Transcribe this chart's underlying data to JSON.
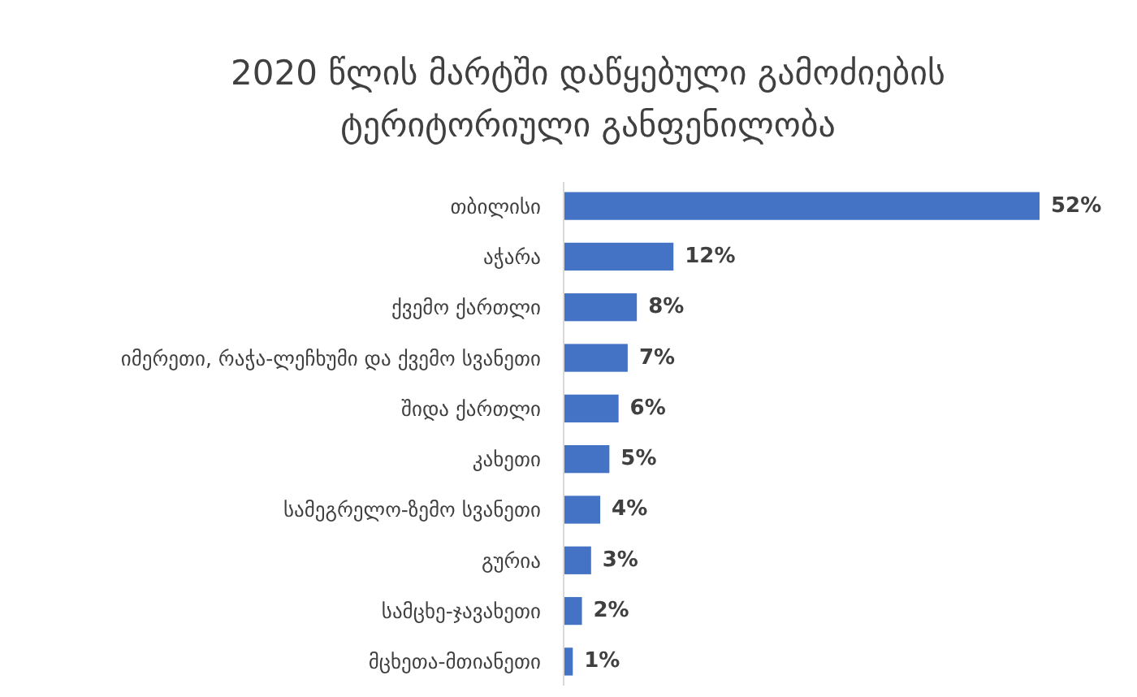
{
  "chart_data": {
    "type": "bar",
    "orientation": "horizontal",
    "title": "2020 წლის მარტში დაწყებული გამოძიების\nტერიტორიული განფენილობა",
    "categories": [
      "თბილისი",
      "აჭარა",
      "ქვემო ქართლი",
      "იმერეთი, რაჭა-ლეჩხუმი და ქვემო სვანეთი",
      "შიდა ქართლი",
      "კახეთი",
      "სამეგრელო-ზემო სვანეთი",
      "გურია",
      "სამცხე-ჯავახეთი",
      "მცხეთა-მთიანეთი"
    ],
    "values": [
      52,
      12,
      8,
      7,
      6,
      5,
      4,
      3,
      2,
      1
    ],
    "value_labels": [
      "52%",
      "12%",
      "8%",
      "7%",
      "6%",
      "5%",
      "4%",
      "3%",
      "2%",
      "1%"
    ],
    "color": "#4472c4"
  }
}
